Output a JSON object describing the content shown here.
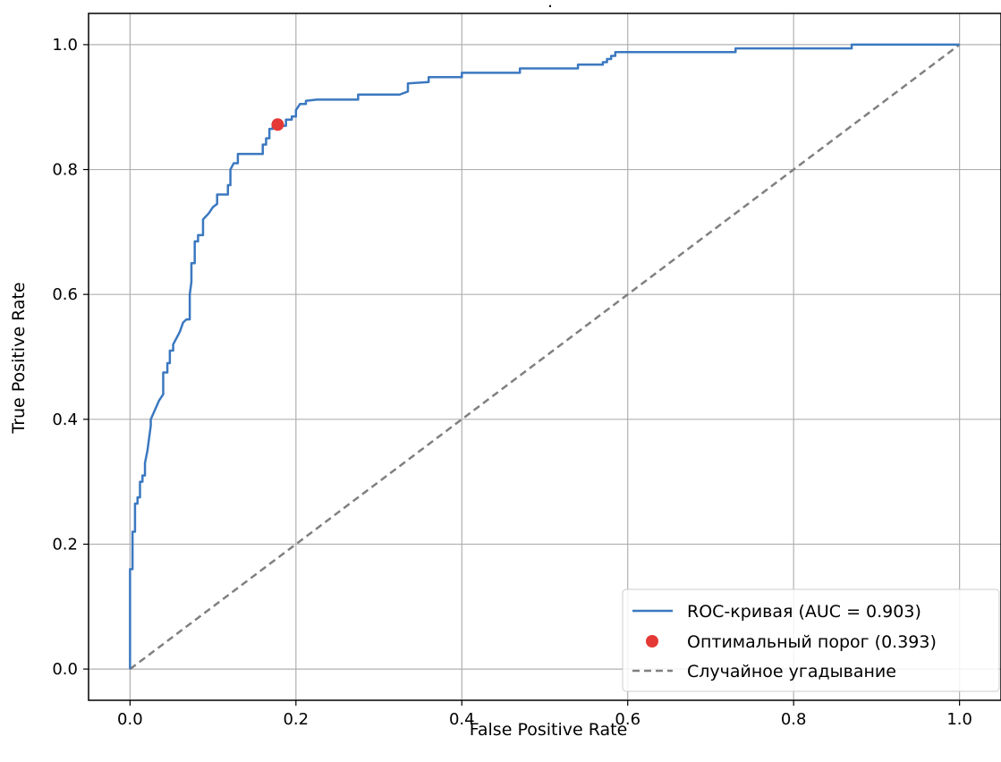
{
  "chart_data": {
    "type": "line",
    "title": ".",
    "xlabel": "False Positive Rate",
    "ylabel": "True Positive Rate",
    "xlim": [
      -0.05,
      1.05
    ],
    "ylim": [
      -0.05,
      1.05
    ],
    "xticks": [
      0.0,
      0.2,
      0.4,
      0.6,
      0.8,
      1.0
    ],
    "yticks": [
      0.0,
      0.2,
      0.4,
      0.6,
      0.8,
      1.0
    ],
    "xtick_labels": [
      "0.0",
      "0.2",
      "0.4",
      "0.6",
      "0.8",
      "1.0"
    ],
    "ytick_labels": [
      "0.0",
      "0.2",
      "0.4",
      "0.6",
      "0.8",
      "1.0"
    ],
    "grid": true,
    "legend_position": "lower-right",
    "series": [
      {
        "name": "ROC-кривая (AUC = 0.903)",
        "kind": "line",
        "style": "solid",
        "color": "#3b78c0",
        "x": [
          0.0,
          0.0,
          0.003,
          0.003,
          0.006,
          0.006,
          0.009,
          0.009,
          0.012,
          0.012,
          0.015,
          0.015,
          0.018,
          0.018,
          0.021,
          0.023,
          0.025,
          0.025,
          0.03,
          0.035,
          0.04,
          0.04,
          0.045,
          0.045,
          0.048,
          0.048,
          0.052,
          0.052,
          0.056,
          0.06,
          0.064,
          0.068,
          0.072,
          0.072,
          0.074,
          0.074,
          0.078,
          0.078,
          0.082,
          0.082,
          0.088,
          0.088,
          0.095,
          0.1,
          0.105,
          0.105,
          0.112,
          0.118,
          0.118,
          0.121,
          0.121,
          0.125,
          0.13,
          0.13,
          0.138,
          0.16,
          0.16,
          0.164,
          0.164,
          0.168,
          0.168,
          0.172,
          0.172,
          0.178,
          0.185,
          0.188,
          0.188,
          0.195,
          0.195,
          0.2,
          0.2,
          0.205,
          0.212,
          0.212,
          0.225,
          0.275,
          0.275,
          0.325,
          0.335,
          0.335,
          0.36,
          0.36,
          0.4,
          0.4,
          0.47,
          0.47,
          0.54,
          0.54,
          0.57,
          0.57,
          0.575,
          0.575,
          0.58,
          0.58,
          0.585,
          0.585,
          0.6,
          0.73,
          0.73,
          0.87,
          0.87,
          1.0
        ],
        "y": [
          0.0,
          0.16,
          0.16,
          0.22,
          0.22,
          0.265,
          0.265,
          0.275,
          0.275,
          0.3,
          0.3,
          0.31,
          0.31,
          0.33,
          0.35,
          0.37,
          0.39,
          0.4,
          0.415,
          0.43,
          0.44,
          0.475,
          0.475,
          0.49,
          0.49,
          0.51,
          0.51,
          0.52,
          0.53,
          0.54,
          0.555,
          0.56,
          0.56,
          0.6,
          0.62,
          0.65,
          0.65,
          0.685,
          0.685,
          0.695,
          0.695,
          0.72,
          0.73,
          0.74,
          0.745,
          0.76,
          0.76,
          0.76,
          0.775,
          0.775,
          0.8,
          0.81,
          0.81,
          0.825,
          0.825,
          0.825,
          0.84,
          0.84,
          0.85,
          0.85,
          0.865,
          0.865,
          0.87,
          0.87,
          0.87,
          0.87,
          0.88,
          0.88,
          0.885,
          0.885,
          0.895,
          0.905,
          0.905,
          0.91,
          0.912,
          0.912,
          0.92,
          0.92,
          0.925,
          0.938,
          0.94,
          0.948,
          0.948,
          0.955,
          0.955,
          0.962,
          0.962,
          0.968,
          0.968,
          0.972,
          0.972,
          0.977,
          0.977,
          0.982,
          0.982,
          0.988,
          0.988,
          0.988,
          0.994,
          0.994,
          1.0,
          1.0
        ]
      },
      {
        "name": "Оптимальный порог (0.393)",
        "kind": "point",
        "color": "#e53935",
        "x": [
          0.178
        ],
        "y": [
          0.872
        ]
      },
      {
        "name": "Случайное угадывание",
        "kind": "line",
        "style": "dashed",
        "color": "#808080",
        "x": [
          0.0,
          1.0
        ],
        "y": [
          0.0,
          1.0
        ]
      }
    ]
  }
}
